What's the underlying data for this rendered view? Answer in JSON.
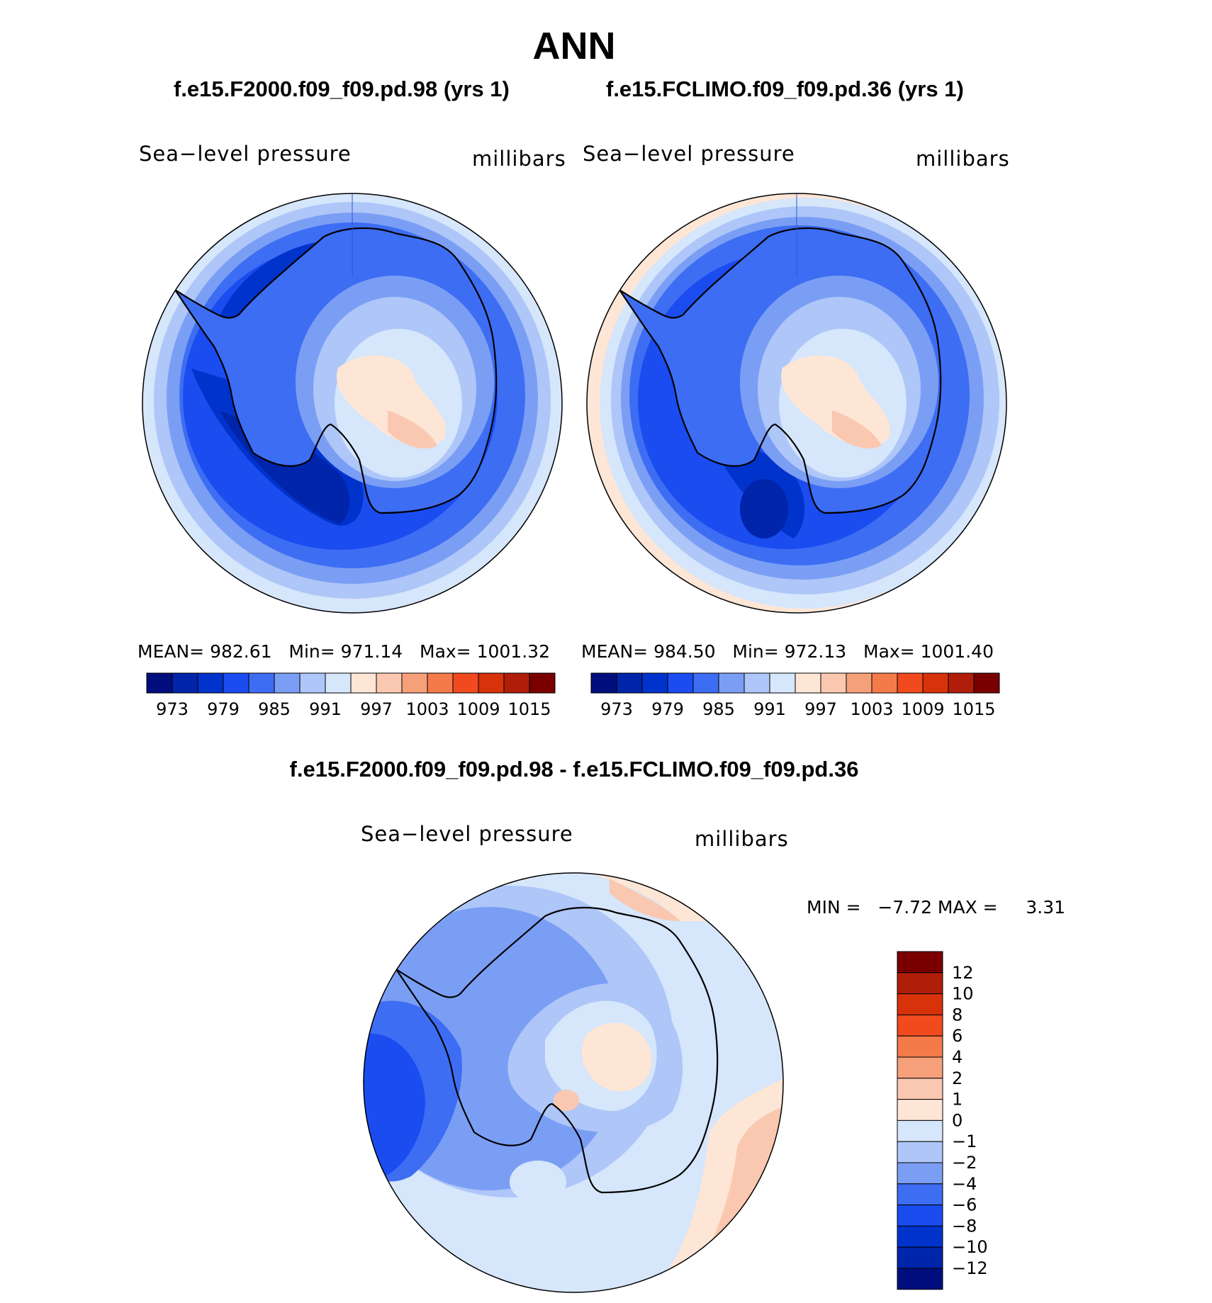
{
  "title": "ANN",
  "left_panel": {
    "run_title": "f.e15.F2000.f09_f09.pd.98 (yrs 1)",
    "variable": "Sea−level pressure",
    "units": "millibars",
    "stats": {
      "mean_label": "MEAN=",
      "mean": "982.61",
      "min_label": "Min=",
      "min": "971.14",
      "max_label": "Max=",
      "max": "1001.32"
    }
  },
  "right_panel": {
    "run_title": "f.e15.FCLIMO.f09_f09.pd.36 (yrs 1)",
    "variable": "Sea−level pressure",
    "units": "millibars",
    "stats": {
      "mean_label": "MEAN=",
      "mean": "984.50",
      "min_label": "Min=",
      "min": "972.13",
      "max_label": "Max=",
      "max": "1001.40"
    }
  },
  "diff_panel": {
    "title": "f.e15.F2000.f09_f09.pd.98 - f.e15.FCLIMO.f09_f09.pd.36",
    "variable": "Sea−level pressure",
    "units": "millibars",
    "min_max": "MIN =   −7.72 MAX =     3.31"
  },
  "abs_colorbar": {
    "colors": [
      "#000e7e",
      "#0024aa",
      "#0033cc",
      "#1a4cf0",
      "#3d6df2",
      "#7b9ef5",
      "#aec6f8",
      "#d6e6fb",
      "#fde6d6",
      "#fac8b0",
      "#f6a07a",
      "#f47a4a",
      "#f04a1e",
      "#d8320a",
      "#b01e0a",
      "#7a0000"
    ],
    "tick_labels": [
      "973",
      "979",
      "985",
      "991",
      "997",
      "1003",
      "1009",
      "1015"
    ]
  },
  "diff_colorbar": {
    "colors": [
      "#000e7e",
      "#0024aa",
      "#0033cc",
      "#1a4cf0",
      "#3d6df2",
      "#7b9ef5",
      "#aec6f8",
      "#d6e6fb",
      "#fde6d6",
      "#fac8b0",
      "#f6a07a",
      "#f47a4a",
      "#f04a1e",
      "#d8320a",
      "#b01e0a",
      "#7a0000"
    ],
    "tick_labels": [
      "12",
      "10",
      "8",
      "6",
      "4",
      "2",
      "1",
      "0",
      "−1",
      "−2",
      "−4",
      "−6",
      "−8",
      "−10",
      "−12"
    ]
  }
}
